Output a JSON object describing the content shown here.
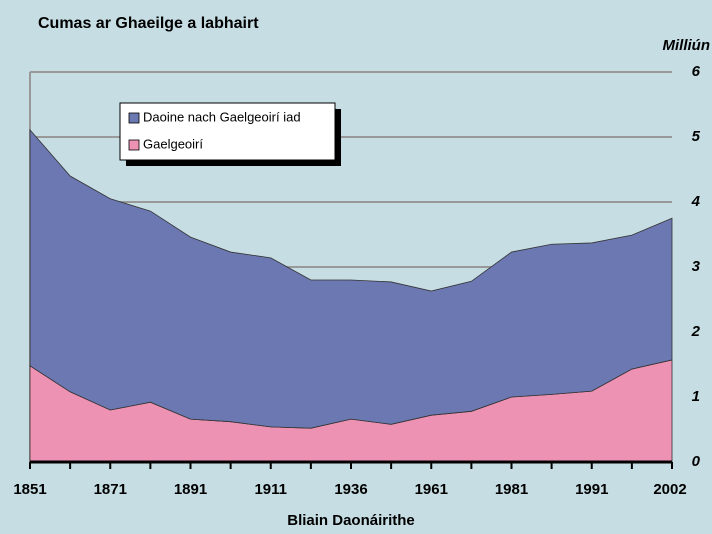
{
  "chart_data": {
    "type": "stacked_area",
    "title": "Cumas ar Ghaeilge a labhairt",
    "y_axis_label": "Milliún",
    "x_axis_label": "Bliain Daonáirithe",
    "categories": [
      "1851",
      null,
      "1871",
      null,
      "1891",
      null,
      "1911",
      null,
      "1936",
      null,
      "1961",
      null,
      "1981",
      null,
      "1991",
      null,
      "2002"
    ],
    "series": [
      {
        "name": "Gaelgeoirí",
        "color": "#ee92b4",
        "values": [
          1.48,
          1.08,
          0.8,
          0.92,
          0.66,
          0.62,
          0.54,
          0.52,
          0.66,
          0.58,
          0.72,
          0.78,
          1.0,
          1.04,
          1.09,
          1.43,
          1.57
        ]
      },
      {
        "name": "Daoine nach Gaelgeoirí iad",
        "color": "#6b78b1",
        "values": [
          3.63,
          3.32,
          3.25,
          2.94,
          2.8,
          2.61,
          2.6,
          2.28,
          2.14,
          2.19,
          1.91,
          2.0,
          2.23,
          2.31,
          2.28,
          2.06,
          2.18
        ]
      }
    ],
    "ylim": [
      0,
      6
    ],
    "yticks": [
      0,
      1,
      2,
      3,
      4,
      5,
      6
    ],
    "grid": true,
    "legend": "upper left"
  }
}
